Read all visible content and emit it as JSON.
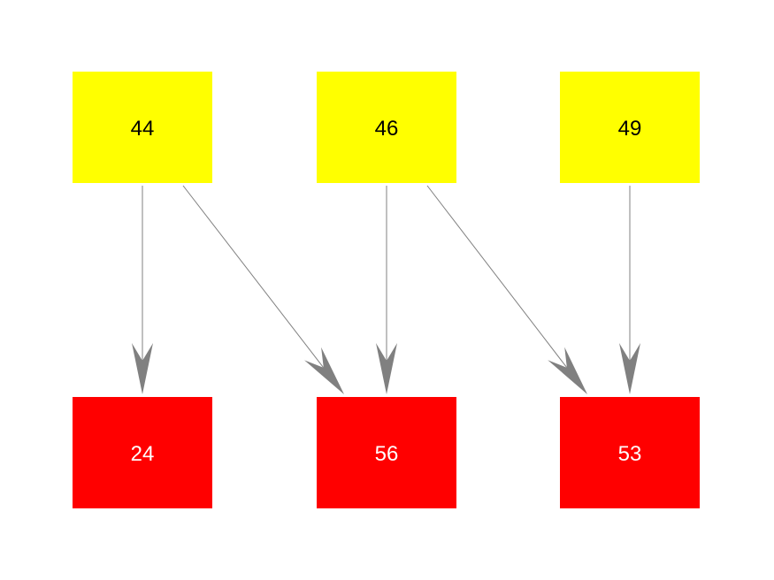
{
  "nodes": [
    {
      "id": "44",
      "label": "44",
      "color": "#ffff00",
      "text_color": "#000000"
    },
    {
      "id": "46",
      "label": "46",
      "color": "#ffff00",
      "text_color": "#000000"
    },
    {
      "id": "49",
      "label": "49",
      "color": "#ffff00",
      "text_color": "#000000"
    },
    {
      "id": "24",
      "label": "24",
      "color": "#ff0000",
      "text_color": "#ffffff"
    },
    {
      "id": "56",
      "label": "56",
      "color": "#ff0000",
      "text_color": "#ffffff"
    },
    {
      "id": "53",
      "label": "53",
      "color": "#ff0000",
      "text_color": "#ffffff"
    }
  ],
  "edges": [
    {
      "from": "44",
      "to": "24"
    },
    {
      "from": "44",
      "to": "56"
    },
    {
      "from": "46",
      "to": "56"
    },
    {
      "from": "46",
      "to": "53"
    },
    {
      "from": "49",
      "to": "53"
    }
  ],
  "edge_color": "#808080"
}
